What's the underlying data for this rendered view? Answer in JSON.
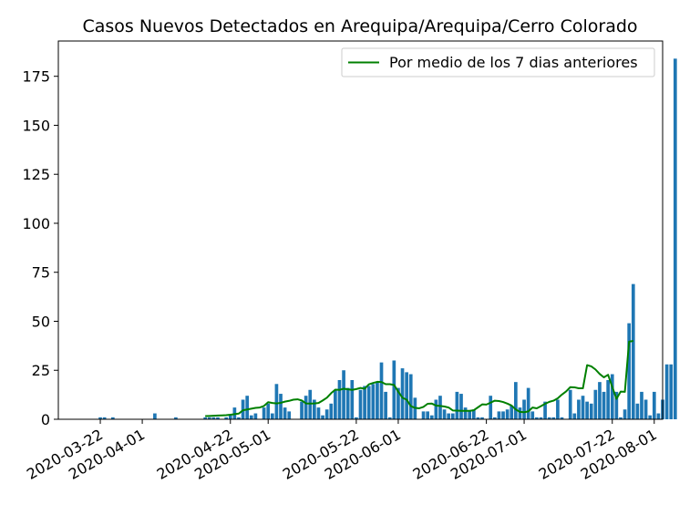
{
  "chart_data": {
    "type": "bar",
    "title": "Casos Nuevos Detectados en Arequipa/Arequipa/Cerro Colorado",
    "xlabel": "",
    "ylabel": "",
    "ylim": [
      0,
      193
    ],
    "yticks": [
      0,
      25,
      50,
      75,
      100,
      125,
      150,
      175
    ],
    "xticks": [
      "2020-03-22",
      "2020-04-01",
      "2020-04-22",
      "2020-05-01",
      "2020-05-22",
      "2020-06-01",
      "2020-06-22",
      "2020-07-01",
      "2020-07-22",
      "2020-08-01"
    ],
    "bar_color": "#1f77b4",
    "line_color": "#008000",
    "legend": {
      "position": "upper right",
      "label": "Por medio de los 7 dias anteriores"
    },
    "grid": false,
    "x_start": "2020-03-12",
    "x_end": "2020-08-03",
    "bars": {
      "start_date": "2020-03-22",
      "values": [
        1,
        1,
        0,
        1,
        0,
        0,
        0,
        0,
        0,
        0,
        0,
        0,
        0,
        3,
        0,
        0,
        0,
        0,
        1,
        0,
        0,
        0,
        0,
        0,
        0,
        1,
        1,
        1,
        1,
        0,
        1,
        2,
        6,
        1,
        10,
        12,
        2,
        3,
        0,
        6,
        8,
        3,
        18,
        13,
        6,
        4,
        0,
        0,
        9,
        12,
        15,
        10,
        6,
        2,
        5,
        8,
        15,
        20,
        25,
        16,
        20,
        1,
        15,
        17,
        17,
        18,
        19,
        29,
        14,
        1,
        30,
        16,
        26,
        24,
        23,
        11,
        0,
        4,
        4,
        2,
        10,
        12,
        5,
        3,
        3,
        14,
        13,
        6,
        4,
        5,
        1,
        1,
        0,
        12,
        1,
        4,
        4,
        5,
        7,
        19,
        6,
        10,
        16,
        4,
        1,
        1,
        9,
        1,
        1,
        10,
        1,
        0,
        15,
        3,
        10,
        12,
        9,
        8,
        15,
        19,
        14,
        20,
        23,
        14,
        1,
        5,
        49,
        69,
        8,
        14,
        10,
        2,
        14,
        3,
        10,
        28,
        28,
        184
      ]
    },
    "average": {
      "start_date": "2020-04-16",
      "values": [
        1.6,
        1.7,
        1.8,
        1.9,
        2.0,
        2.1,
        2.3,
        2.6,
        2.9,
        4.6,
        5.0,
        5.4,
        5.8,
        6.0,
        6.8,
        8.7,
        8.3,
        8.1,
        8.4,
        9.0,
        9.4,
        10.0,
        10.2,
        9.6,
        8.1,
        8.0,
        8.1,
        8.3,
        9.6,
        11.0,
        13.3,
        15.1,
        15.0,
        15.6,
        15.3,
        15.0,
        15.4,
        16.0,
        15.6,
        17.8,
        18.5,
        19.1,
        19.0,
        17.9,
        17.9,
        17.5,
        14.1,
        11.0,
        10.0,
        6.7,
        5.8,
        5.6,
        6.3,
        7.9,
        8.0,
        7.0,
        6.8,
        6.5,
        6.0,
        4.5,
        4.4,
        4.3,
        4.3,
        4.3,
        4.6,
        6.1,
        7.6,
        7.5,
        8.5,
        9.5,
        9.3,
        8.8,
        8.0,
        7.0,
        5.0,
        3.8,
        3.6,
        4.0,
        6.0,
        5.6,
        6.7,
        7.9,
        8.9,
        9.5,
        10.7,
        12.6,
        14.2,
        16.4,
        16.3,
        15.8,
        15.8,
        27.6,
        27.0,
        25.4,
        23.1,
        21.4,
        22.7,
        16.5,
        10.4,
        14.1,
        14.0,
        39.6,
        40.0
      ]
    }
  }
}
